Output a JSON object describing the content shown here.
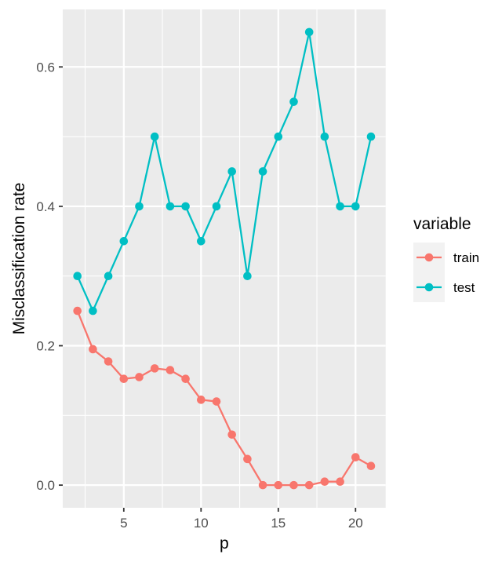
{
  "chart_data": {
    "type": "line",
    "xlabel": "p",
    "ylabel": "Misclassification rate",
    "x": [
      2,
      3,
      4,
      5,
      6,
      7,
      8,
      9,
      10,
      11,
      12,
      13,
      14,
      15,
      16,
      17,
      18,
      19,
      20,
      21
    ],
    "series": [
      {
        "name": "train",
        "color": "#F8766D",
        "values": [
          0.25,
          0.195,
          0.1775,
          0.1525,
          0.155,
          0.1675,
          0.165,
          0.1525,
          0.1225,
          0.12,
          0.0725,
          0.0375,
          0.0,
          0.0,
          0.0,
          0.0,
          0.005,
          0.005,
          0.04,
          0.0275
        ]
      },
      {
        "name": "test",
        "color": "#00BFC4",
        "values": [
          0.3,
          0.25,
          0.3,
          0.35,
          0.4,
          0.5,
          0.4,
          0.4,
          0.35,
          0.4,
          0.45,
          0.3,
          0.45,
          0.5,
          0.55,
          0.65,
          0.5,
          0.4,
          0.4,
          0.5
        ]
      }
    ],
    "x_ticks": {
      "values": [
        5,
        10,
        15,
        20
      ],
      "labels": [
        "5",
        "10",
        "15",
        "20"
      ]
    },
    "y_ticks": {
      "values": [
        0.0,
        0.2,
        0.4,
        0.6
      ],
      "labels": [
        "0.0",
        "0.2",
        "0.4",
        "0.6"
      ]
    },
    "x_minor": [
      2.5,
      7.5,
      12.5,
      17.5
    ],
    "y_minor": [
      0.1,
      0.3,
      0.5
    ],
    "xlim": [
      1.05,
      21.95
    ],
    "ylim": [
      -0.0325,
      0.6825
    ],
    "grid": "on",
    "legend": {
      "title": "variable",
      "position": "right",
      "entries": [
        "train",
        "test"
      ]
    }
  },
  "style": {
    "page_bg": "#FFFFFF",
    "panel_bg": "#EBEBEB",
    "grid_color": "#FFFFFF",
    "axis_text_color": "#4D4D4D",
    "title_text_color": "#000000",
    "tick_mark_color": "#333333",
    "legend_key_bg": "#F2F2F2",
    "train_color": "#F8766D",
    "test_color": "#00BFC4"
  }
}
